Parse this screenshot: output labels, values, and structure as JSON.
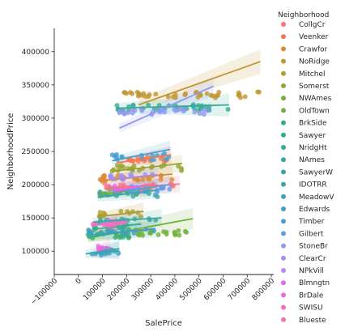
{
  "chart_data": {
    "type": "scatter",
    "xlabel": "SalePrice",
    "ylabel": "NeighborhoodPrice",
    "xlim": [
      -100000,
      800000
    ],
    "ylim": [
      65000,
      435000
    ],
    "x_ticks": [
      -100000,
      0,
      100000,
      200000,
      300000,
      400000,
      500000,
      600000,
      700000,
      800000
    ],
    "x_tick_labels": [
      "−100000",
      "0",
      "100000",
      "200000",
      "300000",
      "400000",
      "500000",
      "600000",
      "700000",
      "800000"
    ],
    "y_ticks": [
      100000,
      150000,
      200000,
      250000,
      300000,
      350000,
      400000
    ],
    "y_tick_labels": [
      "100000",
      "150000",
      "200000",
      "250000",
      "300000",
      "350000",
      "400000"
    ],
    "grid": false,
    "legend_title": "Neighborhood",
    "legend_position": "right-outside",
    "series": [
      {
        "name": "CollgCr",
        "color": "#f77189",
        "y": 197500,
        "xrange": [
          110000,
          420000
        ],
        "fit": {
          "x0": 110000,
          "y0": 194000,
          "x1": 420000,
          "y1": 201000
        }
      },
      {
        "name": "Veenker",
        "color": "#f7754f",
        "y": 238000,
        "xrange": [
          160000,
          385000
        ],
        "fit": {
          "x0": 160000,
          "y0": 233000,
          "x1": 385000,
          "y1": 245000
        }
      },
      {
        "name": "Crawfor",
        "color": "#dc8932",
        "y": 210000,
        "xrange": [
          90000,
          390000
        ],
        "fit": {
          "x0": 90000,
          "y0": 206000,
          "x1": 390000,
          "y1": 216000
        }
      },
      {
        "name": "NoRidge",
        "color": "#c39532",
        "y": 335000,
        "xrange": [
          190000,
          755000
        ],
        "fit": {
          "x0": 250000,
          "y0": 320000,
          "x1": 755000,
          "y1": 385000
        }
      },
      {
        "name": "Mitchel",
        "color": "#ae9d31",
        "y": 156000,
        "xrange": [
          85000,
          270000
        ],
        "fit": {
          "x0": 85000,
          "y0": 152000,
          "x1": 270000,
          "y1": 160000
        }
      },
      {
        "name": "Somerst",
        "color": "#97a431",
        "y": 225000,
        "xrange": [
          140000,
          430000
        ],
        "fit": {
          "x0": 140000,
          "y0": 220000,
          "x1": 430000,
          "y1": 232000
        }
      },
      {
        "name": "NWAmes",
        "color": "#77ab31",
        "y": 189000,
        "xrange": [
          80000,
          300000
        ],
        "fit": {
          "x0": 80000,
          "y0": 185000,
          "x1": 300000,
          "y1": 196000
        }
      },
      {
        "name": "OldTown",
        "color": "#6fb03a",
        "y": 128000,
        "xrange": [
          40000,
          475000
        ],
        "fit": {
          "x0": 40000,
          "y0": 120000,
          "x1": 475000,
          "y1": 149000
        }
      },
      {
        "name": "BrkSide",
        "color": "#33b07a",
        "y": 124000,
        "xrange": [
          40000,
          220000
        ],
        "fit": {
          "x0": 40000,
          "y0": 121000,
          "x1": 220000,
          "y1": 131000
        }
      },
      {
        "name": "Sawyer",
        "color": "#35ad8b",
        "y": 136000,
        "xrange": [
          60000,
          260000
        ],
        "fit": {
          "x0": 60000,
          "y0": 133000,
          "x1": 260000,
          "y1": 141000
        }
      },
      {
        "name": "NridgHt",
        "color": "#37ab97",
        "y": 316000,
        "xrange": [
          160000,
          625000
        ],
        "fit": {
          "x0": 160000,
          "y0": 315000,
          "x1": 625000,
          "y1": 320000
        }
      },
      {
        "name": "NAmes",
        "color": "#38aaa0",
        "y": 146000,
        "xrange": [
          60000,
          345000
        ],
        "fit": {
          "x0": 60000,
          "y0": 144000,
          "x1": 345000,
          "y1": 150000
        }
      },
      {
        "name": "SawyerW",
        "color": "#39a8a8",
        "y": 186000,
        "xrange": [
          80000,
          330000
        ],
        "fit": {
          "x0": 80000,
          "y0": 181000,
          "x1": 330000,
          "y1": 192000
        }
      },
      {
        "name": "IDOTRR",
        "color": "#3aa6b0",
        "y": 100000,
        "xrange": [
          30000,
          170000
        ],
        "fit": {
          "x0": 30000,
          "y0": 96000,
          "x1": 170000,
          "y1": 104000
        }
      },
      {
        "name": "MeadowV",
        "color": "#3ba3bb",
        "y": 98500,
        "xrange": [
          60000,
          170000
        ],
        "fit": {
          "x0": 60000,
          "y0": 96000,
          "x1": 170000,
          "y1": 101000
        }
      },
      {
        "name": "Edwards",
        "color": "#3da0c6",
        "y": 129000,
        "xrange": [
          40000,
          320000
        ],
        "fit": {
          "x0": 40000,
          "y0": 124000,
          "x1": 320000,
          "y1": 134000
        }
      },
      {
        "name": "Timber",
        "color": "#43a0d2",
        "y": 242000,
        "xrange": [
          140000,
          380000
        ],
        "fit": {
          "x0": 140000,
          "y0": 236000,
          "x1": 380000,
          "y1": 253000
        }
      },
      {
        "name": "Gilbert",
        "color": "#5b9ee8",
        "y": 193000,
        "xrange": [
          140000,
          380000
        ],
        "fit": {
          "x0": 140000,
          "y0": 189000,
          "x1": 380000,
          "y1": 200000
        }
      },
      {
        "name": "StoneBr",
        "color": "#8d98ef",
        "y": 310000,
        "xrange": [
          170000,
          560000
        ],
        "fit": {
          "x0": 170000,
          "y0": 285000,
          "x1": 560000,
          "y1": 348000
        }
      },
      {
        "name": "ClearCr",
        "color": "#a38ff2",
        "y": 212000,
        "xrange": [
          130000,
          330000
        ],
        "fit": {
          "x0": 130000,
          "y0": 208000,
          "x1": 330000,
          "y1": 215000
        }
      },
      {
        "name": "NPkVill",
        "color": "#bc84f4",
        "y": 142000,
        "xrange": [
          120000,
          160000
        ],
        "fit": {
          "x0": 120000,
          "y0": 140000,
          "x1": 160000,
          "y1": 144000
        }
      },
      {
        "name": "Blmngtn",
        "color": "#e066f4",
        "y": 194000,
        "xrange": [
          150000,
          270000
        ],
        "fit": {
          "x0": 150000,
          "y0": 190000,
          "x1": 270000,
          "y1": 199000
        }
      },
      {
        "name": "BrDale",
        "color": "#f365da",
        "y": 104000,
        "xrange": [
          80000,
          130000
        ],
        "fit": {
          "x0": 80000,
          "y0": 102000,
          "x1": 130000,
          "y1": 106000
        }
      },
      {
        "name": "SWISU",
        "color": "#f56cc7",
        "y": 142000,
        "xrange": [
          60000,
          200000
        ],
        "fit": {
          "x0": 60000,
          "y0": 139000,
          "x1": 200000,
          "y1": 145000
        }
      },
      {
        "name": "Blueste",
        "color": "#f66fb3",
        "y": 137500,
        "xrange": [
          120000,
          160000
        ],
        "fit": {
          "x0": 120000,
          "y0": 136000,
          "x1": 160000,
          "y1": 139000
        }
      }
    ]
  }
}
